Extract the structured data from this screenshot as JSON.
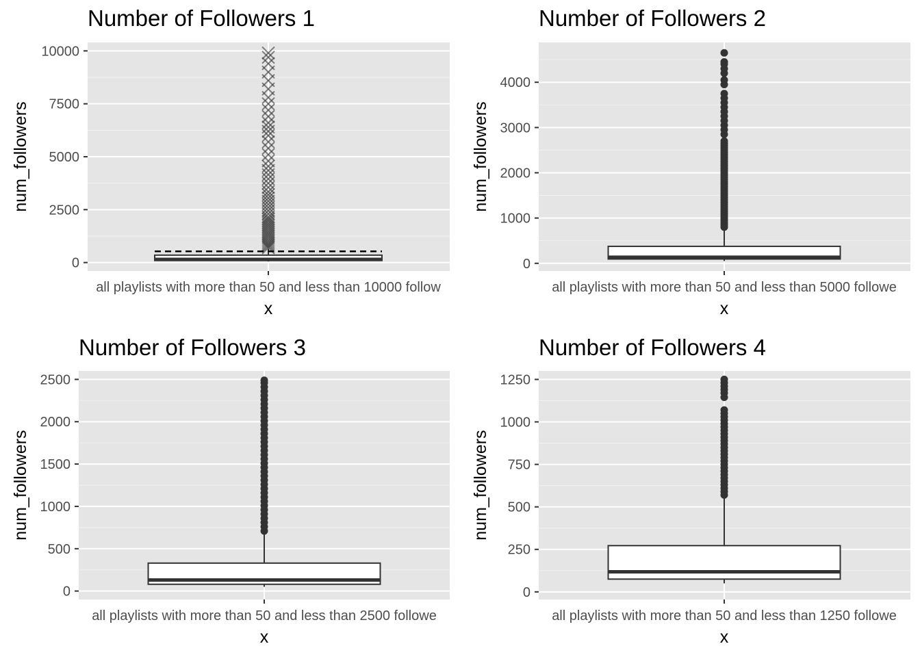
{
  "chart_data": [
    {
      "type": "boxplot",
      "title": "Number of Followers 1",
      "xlabel": "x",
      "ylabel": "num_followers",
      "category": "all playlists with more than 50 and less than 10000 follow",
      "ylim": [
        -400,
        10400
      ],
      "yticks": [
        0,
        2500,
        5000,
        7500,
        10000
      ],
      "box": {
        "q1": 95,
        "median": 150,
        "q3": 350,
        "whisker_low": 50,
        "whisker_high": 650
      },
      "mean_line": 530,
      "outlier_marker": "x",
      "outliers": [
        700,
        780,
        860,
        950,
        1050,
        1150,
        1250,
        1350,
        1450,
        1550,
        1650,
        1750,
        1850,
        1950,
        2050,
        2150,
        2300,
        2450,
        2600,
        2750,
        2900,
        3050,
        3200,
        3350,
        3550,
        3750,
        3950,
        4150,
        4350,
        4550,
        4800,
        5100,
        5400,
        5700,
        6000,
        6200,
        6400,
        6600,
        6900,
        7200,
        7500,
        7800,
        8200,
        8600,
        9000,
        9400,
        9700,
        9900
      ]
    },
    {
      "type": "boxplot",
      "title": "Number of Followers 2",
      "xlabel": "x",
      "ylabel": "num_followers",
      "category": "all playlists with more than 50  and less than 5000 followe",
      "ylim": [
        -170,
        4880
      ],
      "yticks": [
        0,
        1000,
        2000,
        3000,
        4000
      ],
      "box": {
        "q1": 95,
        "median": 135,
        "q3": 375,
        "whisker_low": 50,
        "whisker_high": 780
      },
      "outlier_marker": "o",
      "outliers": [
        800,
        850,
        900,
        950,
        1000,
        1050,
        1100,
        1150,
        1200,
        1250,
        1300,
        1350,
        1400,
        1450,
        1500,
        1550,
        1600,
        1650,
        1700,
        1750,
        1800,
        1850,
        1900,
        1950,
        2000,
        2050,
        2100,
        2150,
        2200,
        2250,
        2300,
        2350,
        2400,
        2450,
        2500,
        2550,
        2600,
        2650,
        2700,
        2850,
        2950,
        3050,
        3150,
        3250,
        3350,
        3450,
        3550,
        3650,
        3750,
        3950,
        4050,
        4200,
        4300,
        4400,
        4450,
        4650
      ]
    },
    {
      "type": "boxplot",
      "title": "Number of Followers 3",
      "xlabel": "x",
      "ylabel": "num_followers",
      "category": "all playlists with more than 50  and less than 2500 followe",
      "ylim": [
        -100,
        2600
      ],
      "yticks": [
        0,
        500,
        1000,
        1500,
        2000,
        2500
      ],
      "box": {
        "q1": 80,
        "median": 130,
        "q3": 330,
        "whisker_low": 50,
        "whisker_high": 690
      },
      "outlier_marker": "o",
      "outliers": [
        710,
        760,
        810,
        860,
        910,
        960,
        1010,
        1060,
        1110,
        1160,
        1210,
        1260,
        1310,
        1360,
        1410,
        1460,
        1510,
        1560,
        1610,
        1660,
        1710,
        1760,
        1810,
        1860,
        1910,
        1960,
        2010,
        2060,
        2110,
        2160,
        2210,
        2260,
        2310,
        2360,
        2410,
        2460,
        2490
      ]
    },
    {
      "type": "boxplot",
      "title": "Number of Followers 4",
      "xlabel": "x",
      "ylabel": "num_followers",
      "category": "all playlists with more than 50  and less than 1250 followe",
      "ylim": [
        -45,
        1300
      ],
      "yticks": [
        0,
        250,
        500,
        750,
        1000,
        1250
      ],
      "box": {
        "q1": 75,
        "median": 118,
        "q3": 272,
        "whisker_low": 50,
        "whisker_high": 560
      },
      "outlier_marker": "o",
      "outliers": [
        570,
        590,
        610,
        630,
        650,
        670,
        690,
        710,
        730,
        750,
        770,
        790,
        810,
        830,
        850,
        870,
        890,
        910,
        930,
        950,
        970,
        990,
        1010,
        1030,
        1050,
        1070,
        1145,
        1170,
        1190,
        1210,
        1230,
        1250
      ]
    }
  ]
}
